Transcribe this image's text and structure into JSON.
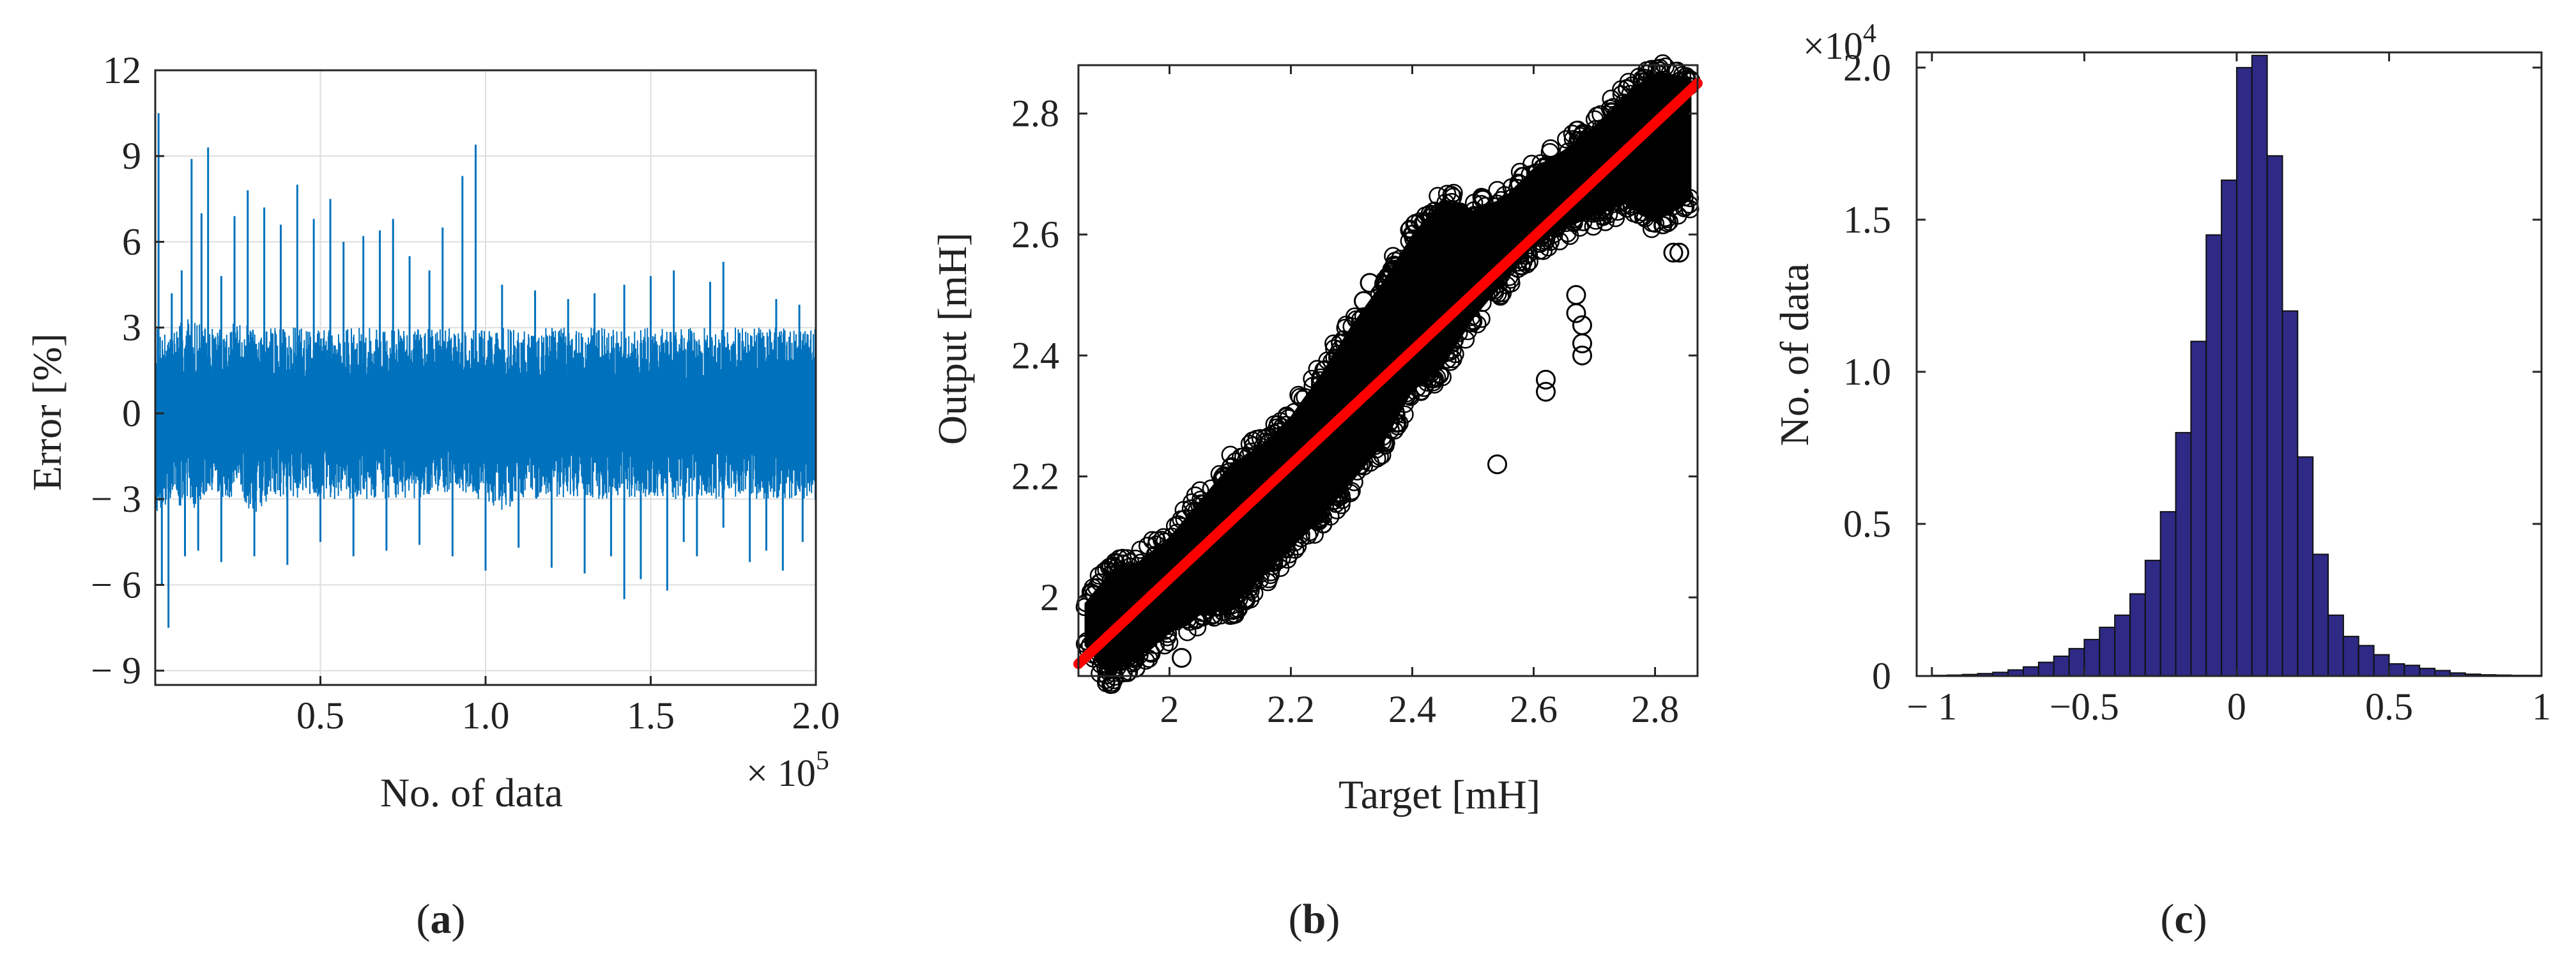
{
  "colors": {
    "error_line": "#0072bd",
    "scatter_marker": "#000000",
    "fit_line": "#ff0000",
    "histogram_bar": "#2e2a86",
    "grid": "#dedede",
    "axes": "#262626"
  },
  "chart_data": [
    {
      "panel": "a",
      "type": "line",
      "xlabel": "No. of data",
      "ylabel": "Error [%]",
      "x_exponent_label": "× 10",
      "x_exponent_power": "5",
      "xlim": [
        0,
        2.0
      ],
      "ylim": [
        -9.5,
        12
      ],
      "xticks": [
        0.5,
        1.0,
        1.5,
        2.0
      ],
      "xtick_labels": [
        "0.5",
        "1.0",
        "1.5",
        "2.0"
      ],
      "yticks": [
        12,
        9,
        6,
        3,
        0,
        -3,
        -6,
        -9
      ],
      "ytick_labels": [
        "12",
        "9",
        "6",
        "3",
        "0",
        "− 3",
        "− 6",
        "− 9"
      ],
      "grid": true,
      "series": [
        {
          "band_x": [
            0,
            0.05,
            0.1,
            0.15,
            0.2,
            0.25,
            0.3,
            0.35,
            0.4,
            0.45,
            0.5,
            0.55,
            0.6,
            0.65,
            0.7,
            0.75,
            0.8,
            0.85,
            0.9,
            0.95,
            1.0,
            1.05,
            1.1,
            1.15,
            1.2,
            1.25,
            1.3,
            1.35,
            1.4,
            1.45,
            1.5,
            1.55,
            1.6,
            1.65,
            1.7,
            1.75,
            1.8,
            1.85,
            1.9,
            1.95,
            2.0
          ],
          "band_upper": [
            3,
            3,
            3.5,
            3,
            3,
            3.2,
            3,
            3,
            3,
            3,
            3,
            3,
            3,
            3,
            3,
            3,
            3,
            3,
            3,
            3,
            3,
            3,
            3,
            3,
            3,
            3,
            3,
            3,
            3,
            3,
            3,
            3,
            3,
            3,
            3,
            3,
            3,
            3,
            3,
            3,
            3
          ],
          "band_lower": [
            -3.5,
            -3,
            -3.5,
            -3,
            -3,
            -3,
            -3.5,
            -3,
            -3,
            -3,
            -3,
            -3,
            -3,
            -3,
            -3,
            -3,
            -3,
            -3,
            -3,
            -3,
            -3,
            -3.5,
            -3,
            -3,
            -3,
            -3,
            -3,
            -3,
            -3,
            -3,
            -3,
            -3,
            -3,
            -3,
            -3,
            -3,
            -3,
            -3,
            -3,
            -3,
            -3
          ],
          "spikes_up": [
            [
              0.01,
              10.5
            ],
            [
              0.05,
              4.2
            ],
            [
              0.08,
              5.0
            ],
            [
              0.11,
              8.9
            ],
            [
              0.14,
              7.0
            ],
            [
              0.16,
              9.3
            ],
            [
              0.2,
              4.8
            ],
            [
              0.24,
              6.9
            ],
            [
              0.28,
              7.8
            ],
            [
              0.33,
              7.2
            ],
            [
              0.38,
              6.6
            ],
            [
              0.43,
              8.0
            ],
            [
              0.48,
              6.8
            ],
            [
              0.53,
              7.5
            ],
            [
              0.57,
              6.0
            ],
            [
              0.63,
              6.2
            ],
            [
              0.68,
              6.4
            ],
            [
              0.72,
              6.8
            ],
            [
              0.77,
              5.5
            ],
            [
              0.83,
              5.0
            ],
            [
              0.87,
              6.5
            ],
            [
              0.93,
              8.3
            ],
            [
              0.97,
              9.4
            ],
            [
              1.05,
              4.5
            ],
            [
              1.15,
              4.3
            ],
            [
              1.25,
              4.0
            ],
            [
              1.33,
              4.2
            ],
            [
              1.42,
              4.5
            ],
            [
              1.5,
              4.8
            ],
            [
              1.57,
              5.0
            ],
            [
              1.68,
              4.6
            ],
            [
              1.72,
              5.3
            ],
            [
              1.88,
              4.0
            ],
            [
              1.95,
              3.8
            ]
          ],
          "spikes_down": [
            [
              0.02,
              -6.0
            ],
            [
              0.04,
              -7.5
            ],
            [
              0.09,
              -5.0
            ],
            [
              0.13,
              -4.8
            ],
            [
              0.2,
              -5.2
            ],
            [
              0.3,
              -5.0
            ],
            [
              0.4,
              -5.3
            ],
            [
              0.5,
              -4.5
            ],
            [
              0.6,
              -5.0
            ],
            [
              0.7,
              -4.8
            ],
            [
              0.8,
              -4.6
            ],
            [
              0.9,
              -5.0
            ],
            [
              1.0,
              -5.5
            ],
            [
              1.1,
              -4.7
            ],
            [
              1.2,
              -5.4
            ],
            [
              1.3,
              -5.6
            ],
            [
              1.38,
              -5.0
            ],
            [
              1.42,
              -6.5
            ],
            [
              1.47,
              -5.8
            ],
            [
              1.55,
              -6.2
            ],
            [
              1.6,
              -4.5
            ],
            [
              1.64,
              -5.0
            ],
            [
              1.72,
              -4.0
            ],
            [
              1.8,
              -5.2
            ],
            [
              1.85,
              -4.8
            ],
            [
              1.9,
              -5.5
            ],
            [
              1.96,
              -4.5
            ]
          ]
        }
      ],
      "caption": "a"
    },
    {
      "panel": "b",
      "type": "scatter",
      "xlabel": "Target [mH]",
      "ylabel": "Output [mH]",
      "xlim": [
        1.85,
        2.87
      ],
      "ylim": [
        1.87,
        2.88
      ],
      "xticks": [
        2.0,
        2.2,
        2.4,
        2.6,
        2.8
      ],
      "xtick_labels": [
        "2",
        "2.2",
        "2.4",
        "2.6",
        "2.8"
      ],
      "yticks": [
        2.0,
        2.2,
        2.4,
        2.6,
        2.8
      ],
      "ytick_labels": [
        "2",
        "2.2",
        "2.4",
        "2.6",
        "2.8"
      ],
      "grid": false,
      "fit_line": {
        "x": [
          1.85,
          2.87
        ],
        "y": [
          1.89,
          2.85
        ]
      },
      "band": {
        "x": [
          1.86,
          1.9,
          1.95,
          2.0,
          2.05,
          2.1,
          2.15,
          2.2,
          2.25,
          2.3,
          2.35,
          2.4,
          2.45,
          2.5,
          2.55,
          2.6,
          2.65,
          2.7,
          2.75,
          2.8,
          2.86
        ],
        "upper": [
          1.99,
          2.04,
          2.06,
          2.1,
          2.16,
          2.22,
          2.25,
          2.3,
          2.37,
          2.45,
          2.52,
          2.6,
          2.66,
          2.64,
          2.66,
          2.71,
          2.74,
          2.78,
          2.83,
          2.87,
          2.86
        ],
        "lower": [
          1.92,
          1.87,
          1.9,
          1.94,
          1.97,
          1.98,
          2.03,
          2.08,
          2.13,
          2.19,
          2.25,
          2.34,
          2.38,
          2.46,
          2.52,
          2.58,
          2.61,
          2.63,
          2.65,
          2.62,
          2.66
        ]
      },
      "outliers": [
        [
          2.33,
          2.52
        ],
        [
          2.32,
          2.49
        ],
        [
          2.54,
          2.22
        ],
        [
          2.62,
          2.36
        ],
        [
          2.62,
          2.34
        ],
        [
          2.68,
          2.45
        ],
        [
          2.68,
          2.42
        ],
        [
          2.68,
          2.4
        ],
        [
          2.67,
          2.47
        ],
        [
          2.67,
          2.5
        ],
        [
          2.83,
          2.57
        ],
        [
          2.84,
          2.57
        ],
        [
          2.2,
          2.18
        ],
        [
          2.02,
          1.9
        ]
      ],
      "caption": "b"
    },
    {
      "panel": "c",
      "type": "bar",
      "xlabel": "",
      "ylabel": "No. of data",
      "y_exponent_label": "×10",
      "y_exponent_power": "4",
      "xlim": [
        -1.05,
        1.0
      ],
      "ylim": [
        0,
        2.05
      ],
      "xticks": [
        -1,
        -0.5,
        0,
        0.5,
        1
      ],
      "xtick_labels": [
        "− 1",
        "−0.5",
        "0",
        "0.5",
        "1"
      ],
      "yticks": [
        0,
        0.5,
        1.0,
        1.5,
        2.0
      ],
      "ytick_labels": [
        "0",
        "0.5",
        "1.0",
        "1.5",
        "2.0"
      ],
      "grid": false,
      "bin_edges": [
        -1.0,
        -0.95,
        -0.9,
        -0.85,
        -0.8,
        -0.75,
        -0.7,
        -0.65,
        -0.6,
        -0.55,
        -0.5,
        -0.45,
        -0.4,
        -0.35,
        -0.3,
        -0.25,
        -0.2,
        -0.15,
        -0.1,
        -0.05,
        0.0,
        0.05,
        0.1,
        0.15,
        0.2,
        0.25,
        0.3,
        0.35,
        0.4,
        0.45,
        0.5,
        0.55,
        0.6,
        0.65,
        0.7,
        0.75,
        0.8,
        0.85,
        0.9,
        0.95,
        1.0
      ],
      "values": [
        0.002,
        0.003,
        0.005,
        0.008,
        0.012,
        0.02,
        0.03,
        0.045,
        0.065,
        0.09,
        0.12,
        0.16,
        0.2,
        0.27,
        0.38,
        0.54,
        0.8,
        1.1,
        1.45,
        1.63,
        2.0,
        2.04,
        1.71,
        1.2,
        0.72,
        0.4,
        0.2,
        0.13,
        0.1,
        0.07,
        0.04,
        0.035,
        0.025,
        0.018,
        0.01,
        0.006,
        0.004,
        0.003,
        0.002,
        0.002
      ],
      "caption": "c"
    }
  ]
}
